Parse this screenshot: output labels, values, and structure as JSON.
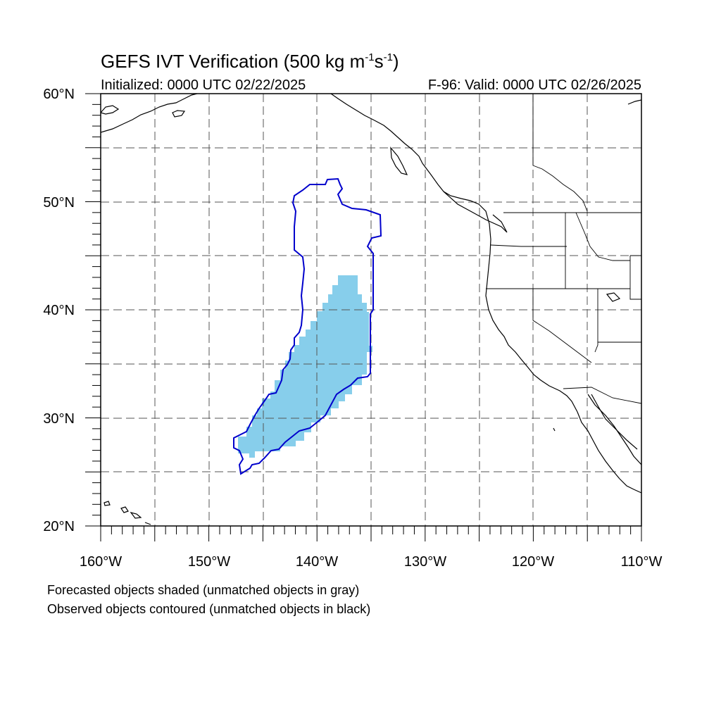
{
  "title": {
    "main": "GEFS IVT Verification (500 kg m",
    "exp1": "-1",
    "mid": "s",
    "exp2": "-1",
    "close": ")"
  },
  "subtitle_left": "Initialized: 0000 UTC 02/22/2025",
  "subtitle_right": "F-96: Valid: 0000 UTC 02/26/2025",
  "axis": {
    "lat_labels": [
      "60°N",
      "50°N",
      "40°N",
      "30°N",
      "20°N"
    ],
    "lon_labels": [
      "160°W",
      "150°W",
      "140°W",
      "130°W",
      "120°W",
      "110°W"
    ],
    "lat_range": [
      20,
      60
    ],
    "lon_range": [
      -160,
      -110
    ],
    "grid": "dashed every 5°"
  },
  "legend": {
    "line1": "Forecasted objects shaded (unmatched objects in gray)",
    "line2": "Observed objects contoured (unmatched objects in black)"
  },
  "colors": {
    "forecast_fill": "#87ceeb",
    "observed_contour": "#0000cc",
    "coastline": "#000000",
    "grid": "#555555"
  },
  "objects": {
    "forecast_shaded_extent": "approx. 26°N–43°N, 147°W–135°W",
    "observed_contour_extent": "approx. 25°N–52°N, 147°W–134°W"
  }
}
